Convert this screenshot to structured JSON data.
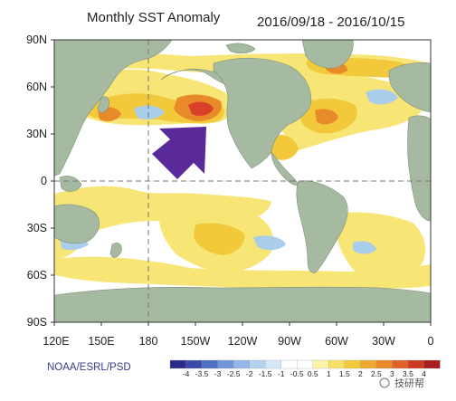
{
  "title_left": "Monthly SST Anomaly",
  "title_right": "2016/09/18 - 2016/10/15",
  "credit": "NOAA/ESRL/PSD",
  "watermark": "技研帮",
  "lat_ticks": [
    "90N",
    "60N",
    "30N",
    "0",
    "30S",
    "60S",
    "90S"
  ],
  "lon_ticks": [
    "120E",
    "150E",
    "180",
    "150W",
    "120W",
    "90W",
    "60W",
    "30W",
    "0"
  ],
  "colorbar": {
    "labels": [
      "-4",
      "-3.5",
      "-3",
      "-2.5",
      "-2",
      "-1.5",
      "-1",
      "-0.5",
      "0.5",
      "1",
      "1.5",
      "2",
      "2.5",
      "3",
      "3.5",
      "4"
    ],
    "colors": [
      "#2a2a8c",
      "#3b4aa8",
      "#4f6fc4",
      "#6f95d8",
      "#93b6e6",
      "#b4d1f0",
      "#d4e6f7",
      "#ffffff",
      "#ffffff",
      "#fbf3a8",
      "#f7e068",
      "#f2c93a",
      "#eeaa2e",
      "#e98a2a",
      "#e0602a",
      "#cc3a22",
      "#a81e1e"
    ]
  },
  "colors": {
    "land": "#a6baa2",
    "ocean_neutral": "#ffffff",
    "warm_light": "#f7e676",
    "warm_mid": "#f2c93a",
    "warm_high": "#e98a2a",
    "warm_peak": "#d8402a",
    "cool_light": "#a9cdeb",
    "arrow": "#5a2a9a"
  },
  "annotation": {
    "icon": "arrow-up-right-icon"
  }
}
